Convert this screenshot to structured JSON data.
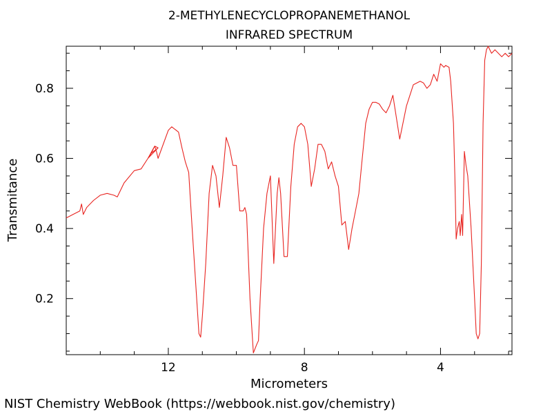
{
  "chart_data": {
    "type": "line",
    "title": [
      "2-METHYLENECYCLOPROPANEMETHANOL",
      "INFRARED SPECTRUM"
    ],
    "xlabel": "Micrometers",
    "ylabel": "Transmitance",
    "xlim": [
      15.0,
      1.9
    ],
    "ylim": [
      0.04,
      0.92
    ],
    "x_ticks": [
      12,
      8,
      4
    ],
    "x_tick_labels": [
      "12",
      "8",
      "4"
    ],
    "y_ticks": [
      0.2,
      0.4,
      0.6,
      0.8
    ],
    "y_tick_labels": [
      "0.2",
      "0.4",
      "0.6",
      "0.8"
    ],
    "grid": false,
    "series": [
      {
        "color": "#e8231f",
        "x": [
          15.0,
          14.8,
          14.6,
          14.55,
          14.5,
          14.4,
          14.2,
          14.0,
          13.8,
          13.6,
          13.5,
          13.3,
          13.0,
          12.8,
          12.6,
          12.5,
          12.4,
          12.3,
          12.6,
          12.5,
          12.6,
          12.6,
          12.5,
          12.6,
          12.4,
          12.3,
          12.5,
          12.5,
          12.4,
          12.35,
          12.3,
          12.0,
          11.9,
          11.7,
          11.6,
          11.5,
          11.4,
          11.3,
          11.2,
          11.1,
          11.05,
          11.0,
          10.9,
          10.8,
          10.7,
          10.6,
          10.5,
          10.4,
          10.3,
          10.2,
          10.1,
          10.0,
          9.9,
          9.8,
          9.75,
          9.7,
          9.6,
          9.5,
          9.4,
          9.35,
          9.3,
          9.2,
          9.1,
          9.0,
          8.9,
          8.8,
          8.75,
          8.7,
          8.6,
          8.5,
          8.4,
          8.3,
          8.2,
          8.1,
          8.0,
          7.9,
          7.8,
          7.7,
          7.6,
          7.5,
          7.4,
          7.3,
          7.2,
          7.1,
          7.0,
          6.9,
          6.8,
          6.7,
          6.6,
          6.5,
          6.4,
          6.3,
          6.2,
          6.1,
          6.0,
          5.9,
          5.8,
          5.7,
          5.6,
          5.5,
          5.4,
          5.2,
          5.0,
          4.8,
          4.6,
          4.5,
          4.4,
          4.3,
          4.2,
          4.1,
          4.0,
          3.9,
          3.85,
          3.75,
          3.7,
          3.62,
          3.58,
          3.54,
          3.5,
          3.45,
          3.42,
          3.38,
          3.35,
          3.3,
          3.25,
          3.2,
          3.1,
          3.0,
          2.95,
          2.9,
          2.85,
          2.8,
          2.75,
          2.7,
          2.65,
          2.6,
          2.55,
          2.5,
          2.4,
          2.3,
          2.2,
          2.1,
          2.0,
          1.9
        ],
        "y": [
          0.43,
          0.44,
          0.45,
          0.47,
          0.44,
          0.46,
          0.48,
          0.495,
          0.5,
          0.495,
          0.49,
          0.53,
          0.565,
          0.57,
          0.6,
          0.615,
          0.635,
          0.63,
          0.6,
          0.615,
          0.6,
          0.6,
          0.615,
          0.6,
          0.635,
          0.63,
          0.615,
          0.615,
          0.635,
          0.62,
          0.6,
          0.68,
          0.69,
          0.675,
          0.63,
          0.59,
          0.56,
          0.4,
          0.25,
          0.1,
          0.09,
          0.15,
          0.3,
          0.5,
          0.58,
          0.55,
          0.46,
          0.55,
          0.66,
          0.63,
          0.58,
          0.58,
          0.45,
          0.45,
          0.46,
          0.44,
          0.2,
          0.045,
          0.07,
          0.08,
          0.2,
          0.4,
          0.5,
          0.55,
          0.3,
          0.5,
          0.545,
          0.5,
          0.32,
          0.32,
          0.52,
          0.64,
          0.69,
          0.7,
          0.69,
          0.64,
          0.52,
          0.57,
          0.64,
          0.64,
          0.62,
          0.57,
          0.59,
          0.55,
          0.52,
          0.41,
          0.42,
          0.34,
          0.4,
          0.45,
          0.5,
          0.6,
          0.7,
          0.74,
          0.76,
          0.76,
          0.755,
          0.74,
          0.73,
          0.75,
          0.78,
          0.655,
          0.75,
          0.81,
          0.82,
          0.815,
          0.8,
          0.81,
          0.84,
          0.82,
          0.87,
          0.86,
          0.865,
          0.86,
          0.82,
          0.7,
          0.55,
          0.37,
          0.4,
          0.42,
          0.38,
          0.44,
          0.38,
          0.62,
          0.58,
          0.55,
          0.4,
          0.2,
          0.1,
          0.085,
          0.1,
          0.3,
          0.7,
          0.88,
          0.91,
          0.92,
          0.91,
          0.9,
          0.91,
          0.9,
          0.89,
          0.9,
          0.89,
          0.9
        ]
      }
    ]
  },
  "footer": {
    "credit": "NIST Chemistry WebBook (https://webbook.nist.gov/chemistry)"
  }
}
